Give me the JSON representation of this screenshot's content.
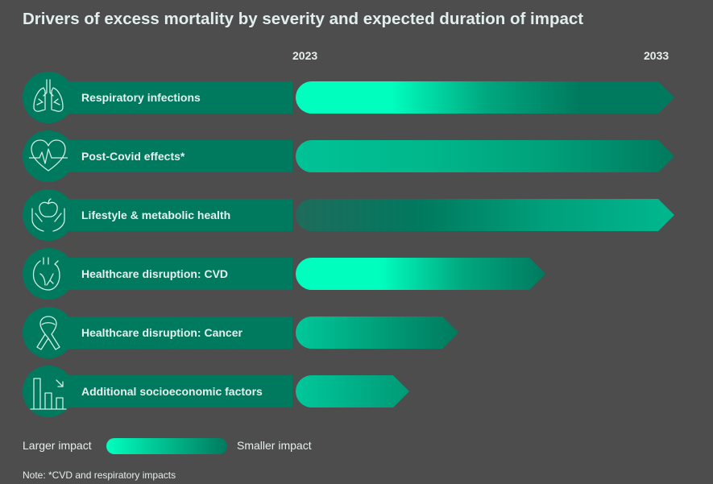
{
  "title": "Drivers of excess mortality by severity and expected duration of impact",
  "chart_data": {
    "type": "bar",
    "orientation": "horizontal",
    "title": "Drivers of excess mortality by severity and expected duration of impact",
    "x_ticks": [
      "2023",
      "2033"
    ],
    "xlim": [
      2023,
      2033
    ],
    "categories": [
      "Respiratory infections",
      "Post-Covid effects*",
      "Lifestyle & metabolic health",
      "Healthcare disruption: CVD",
      "Healthcare disruption: Cancer",
      "Additional socioeconomic factors"
    ],
    "rows": [
      {
        "label": "Respiratory infections",
        "icon": "lungs-icon",
        "end_year": 2033,
        "gradient": [
          "#00ffbf",
          "#00ffbf",
          "#00a880",
          "#007a5e",
          "#007a5e"
        ]
      },
      {
        "label": "Post-Covid effects*",
        "icon": "heartbeat-icon",
        "end_year": 2033,
        "gradient": [
          "#00c296",
          "#00b88c",
          "#00a07a",
          "#007a5e"
        ]
      },
      {
        "label": "Lifestyle & metabolic health",
        "icon": "apple-hands-icon",
        "end_year": 2033,
        "gradient": [
          "#1f6b5c",
          "#007a5e",
          "#00a07c",
          "#00b88e"
        ]
      },
      {
        "label": "Healthcare disruption: CVD",
        "icon": "heart-icon",
        "end_year": 2029.6,
        "gradient": [
          "#00ffbf",
          "#00ffbf",
          "#00a880",
          "#007a5e"
        ]
      },
      {
        "label": "Healthcare disruption: Cancer",
        "icon": "ribbon-icon",
        "end_year": 2027.3,
        "gradient": [
          "#00c89a",
          "#00a07a",
          "#007a5e"
        ]
      },
      {
        "label": "Additional socioeconomic factors",
        "icon": "bar-chart-down-icon",
        "end_year": 2026,
        "gradient": [
          "#00c89a",
          "#00b088",
          "#009a76"
        ]
      }
    ],
    "legend": {
      "left": "Larger impact",
      "right": "Smaller impact"
    }
  },
  "note": "Note: *CVD and respiratory impacts",
  "colors": {
    "background": "#4d4d4d",
    "dark_green": "#007a5e",
    "bright_green": "#00ffbf"
  }
}
